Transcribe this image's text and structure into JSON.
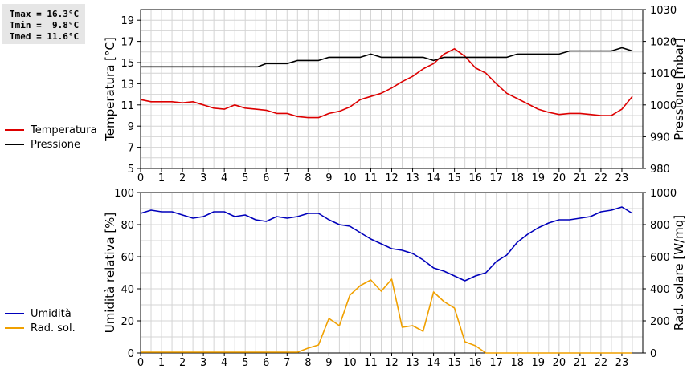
{
  "stats": [
    "Tmax = 16.3°C",
    "Tmin =  9.8°C",
    "Tmed = 11.6°C"
  ],
  "colors": {
    "temperatura": "#dd0000",
    "pressione": "#000000",
    "umidita": "#0000bb",
    "radsol": "#f0a000",
    "grid": "#d4d4d4",
    "stats_bg": "#e6e6e6"
  },
  "chart_data": [
    {
      "type": "line",
      "xlim": [
        0,
        24
      ],
      "x_ticks": [
        "0",
        "1",
        "2",
        "3",
        "4",
        "5",
        "6",
        "7",
        "8",
        "9",
        "10",
        "11",
        "12",
        "13",
        "14",
        "15",
        "16",
        "17",
        "18",
        "19",
        "20",
        "21",
        "22",
        "23"
      ],
      "y_left": {
        "label": "Temperatura [°C]",
        "range": [
          5,
          20
        ],
        "ticks": [
          "5",
          "7",
          "9",
          "11",
          "13",
          "15",
          "17",
          "19"
        ]
      },
      "y_right": {
        "label": "Pressione [mbar]",
        "range": [
          980,
          1030
        ],
        "ticks": [
          "980",
          "990",
          "1000",
          "1010",
          "1020",
          "1030"
        ]
      },
      "grid": true,
      "legend_position": "left",
      "series": [
        {
          "name": "Temperatura",
          "axis": "left",
          "color_key": "temperatura",
          "points": [
            [
              0,
              11.5
            ],
            [
              0.5,
              11.3
            ],
            [
              1,
              11.3
            ],
            [
              1.5,
              11.3
            ],
            [
              2,
              11.2
            ],
            [
              2.5,
              11.3
            ],
            [
              3,
              11.0
            ],
            [
              3.5,
              10.7
            ],
            [
              4,
              10.6
            ],
            [
              4.5,
              11.0
            ],
            [
              5,
              10.7
            ],
            [
              5.5,
              10.6
            ],
            [
              6,
              10.5
            ],
            [
              6.5,
              10.2
            ],
            [
              7,
              10.2
            ],
            [
              7.5,
              9.9
            ],
            [
              8,
              9.8
            ],
            [
              8.5,
              9.8
            ],
            [
              9,
              10.2
            ],
            [
              9.5,
              10.4
            ],
            [
              10,
              10.8
            ],
            [
              10.5,
              11.5
            ],
            [
              11,
              11.8
            ],
            [
              11.5,
              12.1
            ],
            [
              12,
              12.6
            ],
            [
              12.5,
              13.2
            ],
            [
              13,
              13.7
            ],
            [
              13.5,
              14.4
            ],
            [
              14,
              14.9
            ],
            [
              14.5,
              15.8
            ],
            [
              15,
              16.3
            ],
            [
              15.5,
              15.6
            ],
            [
              16,
              14.5
            ],
            [
              16.5,
              14.0
            ],
            [
              17,
              13.0
            ],
            [
              17.5,
              12.1
            ],
            [
              18,
              11.6
            ],
            [
              18.5,
              11.1
            ],
            [
              19,
              10.6
            ],
            [
              19.5,
              10.3
            ],
            [
              20,
              10.1
            ],
            [
              20.5,
              10.2
            ],
            [
              21,
              10.2
            ],
            [
              21.5,
              10.1
            ],
            [
              22,
              10.0
            ],
            [
              22.5,
              10.0
            ],
            [
              23,
              10.6
            ],
            [
              23.5,
              11.8
            ]
          ]
        },
        {
          "name": "Pressione",
          "axis": "right",
          "color_key": "pressione",
          "points": [
            [
              0,
              1012
            ],
            [
              5.6,
              1012
            ],
            [
              6,
              1013
            ],
            [
              6.5,
              1013
            ],
            [
              7,
              1013
            ],
            [
              7.5,
              1014
            ],
            [
              8,
              1014
            ],
            [
              8.5,
              1014
            ],
            [
              9,
              1015
            ],
            [
              10.5,
              1015
            ],
            [
              11,
              1016
            ],
            [
              11.5,
              1015
            ],
            [
              13.5,
              1015
            ],
            [
              14,
              1014
            ],
            [
              14.5,
              1015
            ],
            [
              17,
              1015
            ],
            [
              17.5,
              1015
            ],
            [
              18,
              1016
            ],
            [
              20,
              1016
            ],
            [
              20.5,
              1017
            ],
            [
              22.5,
              1017
            ],
            [
              23,
              1018
            ],
            [
              23.5,
              1017
            ]
          ]
        }
      ]
    },
    {
      "type": "line",
      "xlim": [
        0,
        24
      ],
      "x_ticks": [
        "0",
        "1",
        "2",
        "3",
        "4",
        "5",
        "6",
        "7",
        "8",
        "9",
        "10",
        "11",
        "12",
        "13",
        "14",
        "15",
        "16",
        "17",
        "18",
        "19",
        "20",
        "21",
        "22",
        "23"
      ],
      "y_left": {
        "label": "Umidità relativa [%]",
        "range": [
          0,
          100
        ],
        "ticks": [
          "0",
          "20",
          "40",
          "60",
          "80",
          "100"
        ]
      },
      "y_right": {
        "label": "Rad. solare [W/mq]",
        "range": [
          0,
          1000
        ],
        "ticks": [
          "0",
          "200",
          "400",
          "600",
          "800",
          "1000"
        ]
      },
      "grid": true,
      "legend_position": "left",
      "series": [
        {
          "name": "Umidità",
          "axis": "left",
          "color_key": "umidita",
          "points": [
            [
              0,
              87
            ],
            [
              0.5,
              89
            ],
            [
              1,
              88
            ],
            [
              1.5,
              88
            ],
            [
              2,
              86
            ],
            [
              2.5,
              84
            ],
            [
              3,
              85
            ],
            [
              3.5,
              88
            ],
            [
              4,
              88
            ],
            [
              4.5,
              85
            ],
            [
              5,
              86
            ],
            [
              5.5,
              83
            ],
            [
              6,
              82
            ],
            [
              6.5,
              85
            ],
            [
              7,
              84
            ],
            [
              7.5,
              85
            ],
            [
              8,
              87
            ],
            [
              8.5,
              87
            ],
            [
              9,
              83
            ],
            [
              9.5,
              80
            ],
            [
              10,
              79
            ],
            [
              10.5,
              75
            ],
            [
              11,
              71
            ],
            [
              11.5,
              68
            ],
            [
              12,
              65
            ],
            [
              12.5,
              64
            ],
            [
              13,
              62
            ],
            [
              13.5,
              58
            ],
            [
              14,
              53
            ],
            [
              14.5,
              51
            ],
            [
              15,
              48
            ],
            [
              15.5,
              45
            ],
            [
              16,
              48
            ],
            [
              16.5,
              50
            ],
            [
              17,
              57
            ],
            [
              17.5,
              61
            ],
            [
              18,
              69
            ],
            [
              18.5,
              74
            ],
            [
              19,
              78
            ],
            [
              19.5,
              81
            ],
            [
              20,
              83
            ],
            [
              20.5,
              83
            ],
            [
              21,
              84
            ],
            [
              21.5,
              85
            ],
            [
              22,
              88
            ],
            [
              22.5,
              89
            ],
            [
              23,
              91
            ],
            [
              23.5,
              87
            ]
          ]
        },
        {
          "name": "Rad. sol.",
          "axis": "right",
          "color_key": "radsol",
          "points": [
            [
              0,
              5
            ],
            [
              7.5,
              5
            ],
            [
              8,
              30
            ],
            [
              8.5,
              50
            ],
            [
              9,
              215
            ],
            [
              9.5,
              170
            ],
            [
              10,
              360
            ],
            [
              10.5,
              420
            ],
            [
              11,
              455
            ],
            [
              11.5,
              385
            ],
            [
              12,
              460
            ],
            [
              12.5,
              160
            ],
            [
              13,
              170
            ],
            [
              13.5,
              135
            ],
            [
              14,
              380
            ],
            [
              14.5,
              320
            ],
            [
              15,
              280
            ],
            [
              15.5,
              70
            ],
            [
              16,
              45
            ],
            [
              16.5,
              0
            ],
            [
              23.5,
              0
            ]
          ]
        }
      ]
    }
  ]
}
